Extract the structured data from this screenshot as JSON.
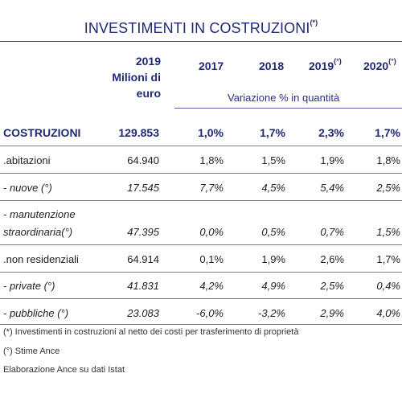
{
  "title": "INVESTIMENTI IN COSTRUZIONI",
  "title_mark": "(*)",
  "headers": {
    "base_line1": "2019",
    "base_line2": "Milioni di",
    "base_line3": "euro",
    "y2017": "2017",
    "y2018": "2018",
    "y2019": "2019",
    "y2019_mark": "(°)",
    "y2020": "2020",
    "y2020_mark": "(°)",
    "variation_label": "Variazione % in quantità"
  },
  "rows": [
    {
      "label": "COSTRUZIONI",
      "value": "129.853",
      "v2017": "1,0%",
      "v2018": "1,7%",
      "v2019": "2,3%",
      "v2020": "1,7%"
    },
    {
      "label": ".abitazioni",
      "value": "64.940",
      "v2017": "1,8%",
      "v2018": "1,5%",
      "v2019": "1,9%",
      "v2020": "1,8%"
    },
    {
      "label": "- nuove (°)",
      "value": "17.545",
      "v2017": "7,7%",
      "v2018": "4,5%",
      "v2019": "5,4%",
      "v2020": "2,5%"
    },
    {
      "label_line1": "- manutenzione",
      "label_line2": "straordinaria(°)",
      "value": "47.395",
      "v2017": "0,0%",
      "v2018": "0,5%",
      "v2019": "0,7%",
      "v2020": "1,5%"
    },
    {
      "label": ".non residenziali",
      "value": "64.914",
      "v2017": "0,1%",
      "v2018": "1,9%",
      "v2019": "2,6%",
      "v2020": "1,7%"
    },
    {
      "label": "- private (°)",
      "value": "41.831",
      "v2017": "4,2%",
      "v2018": "4,9%",
      "v2019": "2,5%",
      "v2020": "0,4%"
    },
    {
      "label": "- pubbliche (°)",
      "value": "23.083",
      "v2017": "-6,0%",
      "v2018": "-3,2%",
      "v2019": "2,9%",
      "v2020": "4,0%"
    }
  ],
  "notes": {
    "note1": "(*) Investimenti in costruzioni al netto dei costi per trasferimento di proprietà",
    "note2": "(°) Stime Ance",
    "note3": "Elaborazione Ance su dati Istat"
  }
}
